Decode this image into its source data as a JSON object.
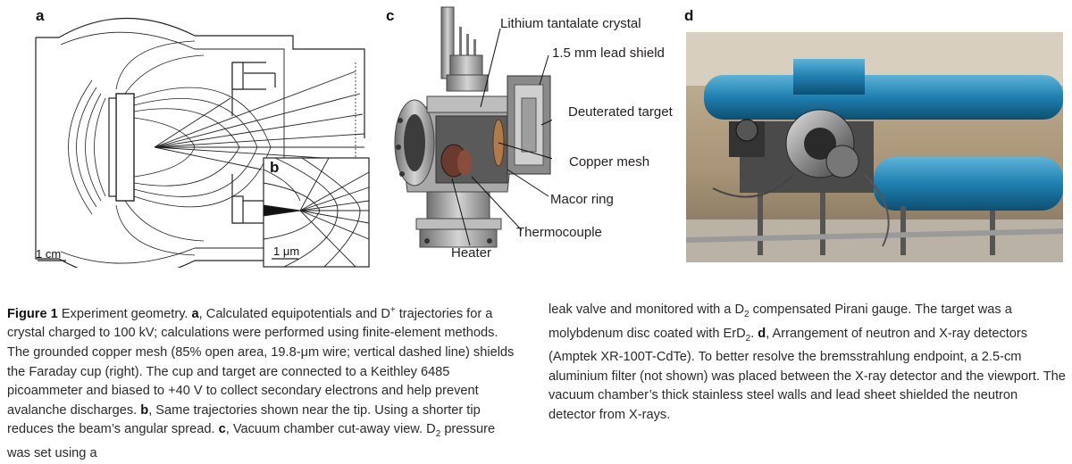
{
  "panels": {
    "a": "a",
    "b": "b",
    "c": "c",
    "d": "d"
  },
  "scales": {
    "a": "1 cm",
    "b": "1 μm"
  },
  "callouts": {
    "lithium": "Lithium tantalate crystal",
    "lead": "1.5 mm lead shield",
    "target": "Deuterated target",
    "mesh": "Copper mesh",
    "macor": "Macor ring",
    "thermo": "Thermocouple",
    "heater": "Heater"
  },
  "caption": {
    "fig": "Figure 1",
    "title": " Experiment geometry. ",
    "a_lbl": "a",
    "a1": ", Calculated equipotentials and D",
    "a_sup": "+",
    "a2": " trajectories for a crystal charged to 100 kV; calculations were performed using finite-element methods. The grounded copper mesh (85% open area, 19.8-",
    "mu": "μ",
    "a3": "m wire; vertical dashed line) shields the Faraday cup (right). The cup and target are connected to a Keithley 6485 picoammeter and biased to ",
    "plus40": "+40 V",
    "a4": " to collect secondary electrons and help prevent avalanche discharges. ",
    "b_lbl": "b",
    "b1": ", Same trajectories shown near the tip. Using a shorter tip reduces the beam’s angular spread. ",
    "c_lbl": "c",
    "c1": ", Vacuum chamber cut-away view. D",
    "c_sub": "2",
    "c2": " pressure was set using a",
    "r1": "leak valve and monitored with a D",
    "r_sub1": "2",
    "r2": " compensated Pirani gauge. The target was a molybdenum disc coated with ErD",
    "r_sub2": "2",
    "r3": ". ",
    "d_lbl": "d",
    "d1": ", Arrangement of neutron and X-ray detectors (Amptek XR-100T-CdTe). To better resolve the bremsstrahlung endpoint, a 2.5-cm aluminium filter (not shown) was placed between the X-ray detector and the viewport. The vacuum chamber’s thick stainless steel walls and lead sheet shielded the neutron detector from X-rays."
  }
}
